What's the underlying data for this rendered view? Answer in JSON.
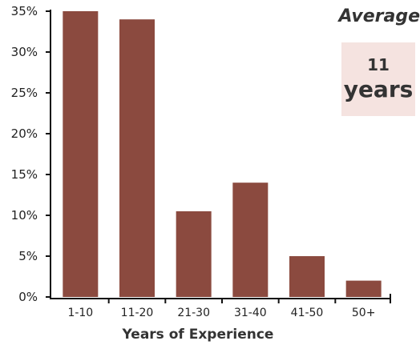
{
  "chart_data": {
    "type": "bar",
    "categories": [
      "1-10",
      "11-20",
      "21-30",
      "31-40",
      "41-50",
      "50+"
    ],
    "values": [
      35,
      34,
      10.5,
      14,
      5,
      2
    ],
    "xlabel": "Years of Experience",
    "ylabel": "",
    "ylim": [
      0,
      35
    ],
    "yticks": [
      {
        "value": 0,
        "label": "0%"
      },
      {
        "value": 5,
        "label": "5%"
      },
      {
        "value": 10,
        "label": "10%"
      },
      {
        "value": 15,
        "label": "15%"
      },
      {
        "value": 20,
        "label": "20%"
      },
      {
        "value": 25,
        "label": "25%"
      },
      {
        "value": 30,
        "label": "30%"
      },
      {
        "value": 35,
        "label": "35%"
      }
    ],
    "grid": false,
    "bar_color": "#8b4a3f"
  },
  "annotation": {
    "title": "Average",
    "value": "11",
    "unit": "years",
    "box_color": "#f5e3e0"
  }
}
